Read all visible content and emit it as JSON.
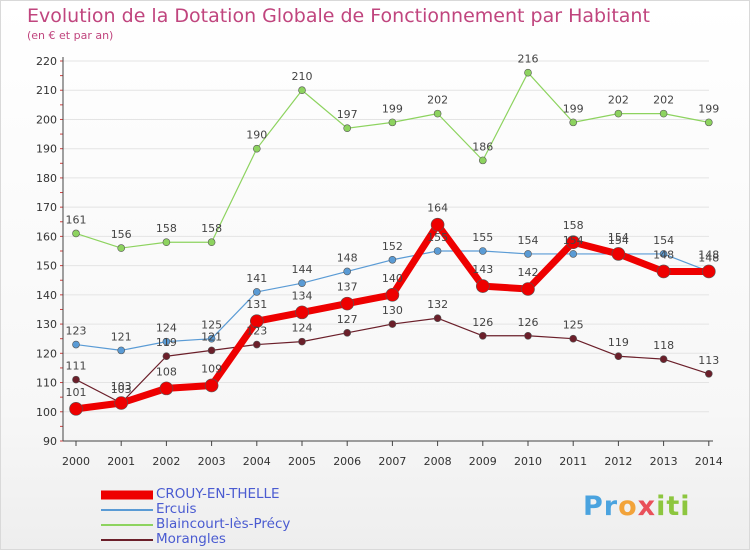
{
  "chart_data": {
    "type": "line",
    "title": "Evolution de la Dotation Globale de Fonctionnement par Habitant",
    "subtitle": "(en € et par an)",
    "x": [
      "2000",
      "2001",
      "2002",
      "2003",
      "2004",
      "2005",
      "2006",
      "2007",
      "2008",
      "2009",
      "2010",
      "2011",
      "2012",
      "2013",
      "2014"
    ],
    "ylim": [
      90,
      220
    ],
    "yticks": [
      90,
      100,
      110,
      120,
      130,
      140,
      150,
      160,
      170,
      180,
      190,
      200,
      210,
      220
    ],
    "grid": true,
    "legend_position": "bottom-left",
    "series": [
      {
        "name": "Blaincourt-lès-Précy",
        "color": "#8dd35f",
        "width": 1.2,
        "marker": 3.5,
        "label_dy": -10,
        "values": [
          161,
          156,
          158,
          158,
          190,
          210,
          197,
          199,
          202,
          186,
          216,
          199,
          202,
          202,
          199
        ]
      },
      {
        "name": "Ercuis",
        "color": "#5a9bd5",
        "width": 1.2,
        "marker": 3.5,
        "label_dy": -10,
        "values": [
          123,
          121,
          124,
          125,
          141,
          144,
          148,
          152,
          155,
          155,
          154,
          154,
          154,
          154,
          148
        ]
      },
      {
        "name": "Morangles",
        "color": "#6b1f2a",
        "width": 1.2,
        "marker": 3.5,
        "label_dy": -10,
        "values": [
          111,
          103,
          119,
          121,
          123,
          124,
          127,
          130,
          132,
          126,
          126,
          125,
          119,
          118,
          113
        ]
      },
      {
        "name": "CROUY-EN-THELLE",
        "color": "#ee0000",
        "width": 7,
        "marker": 6.5,
        "label_dy": -13,
        "values": [
          101,
          103,
          108,
          109,
          131,
          134,
          137,
          140,
          164,
          143,
          142,
          158,
          154,
          148,
          148
        ]
      }
    ],
    "legend_order": [
      "CROUY-EN-THELLE",
      "Ercuis",
      "Blaincourt-lès-Précy",
      "Morangles"
    ]
  },
  "logo": {
    "p1": "Pr",
    "p2": "o",
    "p3": "x",
    "p4": "iti"
  }
}
